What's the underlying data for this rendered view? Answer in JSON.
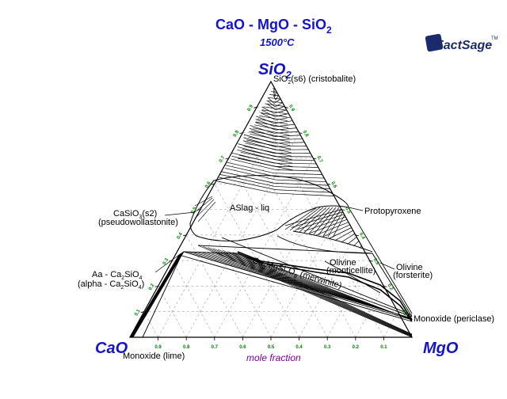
{
  "title": {
    "main": "CaO - MgO - SiO",
    "sub": "2"
  },
  "subtitle": {
    "value": "1500",
    "unit": "°C"
  },
  "logo": {
    "name": "FactSage",
    "mark": "TM"
  },
  "vertices": {
    "top": {
      "main": "SiO",
      "sub": "2"
    },
    "left": "CaO",
    "right": "MgO"
  },
  "axis_label": "mole fraction",
  "ticks": [
    "0.9",
    "0.8",
    "0.7",
    "0.6",
    "0.5",
    "0.4",
    "0.3",
    "0.2",
    "0.1"
  ],
  "phases": {
    "cristobalite": {
      "main": "SiO",
      "sub": "2",
      "rest": "(s6) (cristobalite)"
    },
    "slag": "ASlag - liq",
    "casio3_line1": {
      "main": "CaSiO",
      "sub": "3",
      "rest": "(s2)"
    },
    "casio3_line2": "(pseudowollastonite)",
    "protopyroxene": "Protopyroxene",
    "olivine_mont_1": "Olivine",
    "olivine_mont_2": "(monticellite)",
    "olivine_fors_1": "Olivine",
    "olivine_fors_2": "(forsterite)",
    "aa_line1": {
      "a": "Aa - Ca",
      "s1": "2",
      "b": "SiO",
      "s2": "4"
    },
    "aa_line2": {
      "a": "(alpha - Ca",
      "s1": "2",
      "b": "SiO",
      "s2": "4",
      "c": ")"
    },
    "merwinite": {
      "a": "Ca",
      "s1": "3",
      "b": "MgSi",
      "s2": "2",
      "c": "O",
      "s3": "8",
      "d": " (merwinite)"
    },
    "periclase": "Monoxide (periclase)",
    "lime": "Monoxide (lime)"
  }
}
